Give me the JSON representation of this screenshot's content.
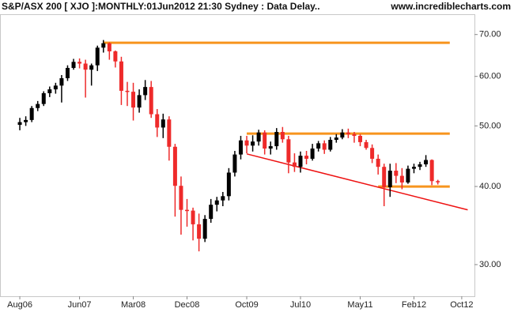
{
  "chart_data": {
    "type": "candlestick",
    "title": "S&P/ASX 200 [ XJO ]:MONTHLY:01Jun2012 21:30 Sydney : Data Delay..",
    "source": "www.incrediblecharts.com",
    "log_scale": true,
    "up_color": "#000000",
    "down_color": "#ee2a2a",
    "x": [
      "2006-08",
      "2006-09",
      "2006-10",
      "2006-11",
      "2006-12",
      "2007-01",
      "2007-02",
      "2007-03",
      "2007-04",
      "2007-05",
      "2007-06",
      "2007-07",
      "2007-08",
      "2007-09",
      "2007-10",
      "2007-11",
      "2007-12",
      "2008-01",
      "2008-02",
      "2008-03",
      "2008-04",
      "2008-05",
      "2008-06",
      "2008-07",
      "2008-08",
      "2008-09",
      "2008-10",
      "2008-11",
      "2008-12",
      "2009-01",
      "2009-02",
      "2009-03",
      "2009-04",
      "2009-05",
      "2009-06",
      "2009-07",
      "2009-08",
      "2009-09",
      "2009-10",
      "2009-11",
      "2009-12",
      "2010-01",
      "2010-02",
      "2010-03",
      "2010-04",
      "2010-05",
      "2010-06",
      "2010-07",
      "2010-08",
      "2010-09",
      "2010-10",
      "2010-11",
      "2010-12",
      "2011-01",
      "2011-02",
      "2011-03",
      "2011-04",
      "2011-05",
      "2011-06",
      "2011-07",
      "2011-08",
      "2011-09",
      "2011-10",
      "2011-11",
      "2011-12",
      "2012-01",
      "2012-02",
      "2012-03",
      "2012-04",
      "2012-05",
      "2012-06"
    ],
    "open": [
      50.2,
      50.7,
      51.1,
      53.4,
      54.2,
      56.4,
      57.2,
      58.0,
      59.6,
      61.9,
      63.3,
      62.9,
      61.5,
      62.5,
      66.7,
      67.8,
      65.8,
      63.4,
      56.9,
      56.7,
      53.5,
      56.0,
      57.7,
      52.2,
      49.7,
      51.2,
      46.3,
      40.1,
      36.7,
      36.6,
      34.8,
      33.0,
      35.5,
      37.4,
      38.0,
      38.6,
      42.1,
      45.0,
      47.4,
      46.5,
      47.2,
      48.8,
      46.0,
      46.4,
      48.9,
      47.6,
      43.7,
      43.0,
      44.8,
      44.3,
      46.0,
      46.9,
      45.8,
      47.5,
      47.9,
      48.8,
      48.5,
      48.2,
      47.1,
      46.1,
      44.3,
      43.0,
      39.9,
      42.4,
      41.6,
      40.6,
      42.7,
      43.0,
      43.4,
      44.1,
      40.8
    ],
    "high": [
      51.5,
      51.8,
      53.8,
      54.8,
      56.8,
      57.8,
      58.6,
      60.3,
      62.5,
      64.0,
      64.1,
      63.8,
      62.9,
      67.2,
      68.6,
      68.0,
      66.0,
      64.5,
      58.8,
      58.6,
      57.2,
      59.2,
      59.0,
      53.2,
      52.3,
      51.8,
      46.8,
      41.5,
      38.2,
      37.0,
      36.2,
      36.0,
      38.2,
      38.5,
      39.2,
      42.8,
      45.6,
      48.2,
      48.2,
      48.3,
      49.3,
      49.2,
      47.2,
      49.6,
      49.8,
      48.2,
      45.2,
      45.5,
      45.6,
      46.8,
      47.3,
      47.4,
      48.0,
      48.5,
      49.4,
      49.5,
      48.9,
      48.5,
      47.5,
      46.7,
      45.0,
      43.5,
      43.5,
      43.6,
      42.8,
      43.2,
      43.5,
      43.8,
      44.9,
      44.2,
      41.0
    ],
    "low": [
      49.2,
      50.0,
      50.7,
      52.8,
      53.8,
      55.6,
      56.3,
      54.5,
      59.0,
      61.5,
      61.8,
      55.5,
      58.0,
      61.2,
      65.5,
      63.8,
      62.0,
      54.0,
      53.8,
      51.0,
      52.5,
      55.0,
      51.5,
      48.0,
      47.8,
      44.0,
      35.8,
      33.5,
      34.5,
      32.8,
      31.5,
      32.6,
      35.0,
      36.5,
      37.2,
      38.0,
      41.5,
      44.2,
      45.2,
      45.5,
      46.5,
      45.0,
      45.0,
      45.8,
      47.0,
      42.0,
      42.2,
      42.1,
      43.4,
      44.0,
      45.5,
      45.1,
      45.5,
      47.0,
      47.6,
      47.8,
      47.0,
      46.4,
      45.8,
      43.6,
      41.8,
      37.2,
      38.5,
      40.5,
      39.6,
      40.4,
      42.0,
      42.5,
      43.0,
      40.2,
      40.3
    ],
    "close": [
      50.7,
      51.1,
      53.4,
      54.2,
      56.4,
      57.2,
      58.0,
      59.6,
      61.9,
      63.3,
      62.9,
      61.5,
      62.5,
      66.7,
      67.8,
      65.8,
      63.4,
      56.9,
      56.7,
      53.5,
      56.0,
      57.7,
      52.2,
      49.7,
      51.2,
      46.3,
      40.1,
      36.7,
      36.6,
      34.8,
      33.0,
      35.5,
      37.4,
      38.0,
      38.6,
      42.1,
      45.0,
      47.4,
      46.5,
      47.2,
      48.8,
      46.0,
      46.4,
      48.9,
      47.6,
      43.7,
      43.0,
      44.8,
      44.3,
      46.0,
      46.9,
      45.8,
      47.5,
      47.9,
      48.8,
      48.5,
      48.2,
      47.1,
      46.1,
      44.3,
      43.0,
      39.9,
      42.4,
      41.6,
      40.6,
      42.7,
      43.0,
      43.4,
      44.1,
      40.8,
      40.7
    ],
    "xlim": [
      "2006-07",
      "2012-12"
    ],
    "xticks": [
      {
        "value": "2006-08",
        "label": "Aug06"
      },
      {
        "value": "2007-06",
        "label": "Jun07"
      },
      {
        "value": "2008-03",
        "label": "Mar08"
      },
      {
        "value": "2008-12",
        "label": "Dec08"
      },
      {
        "value": "2009-10",
        "label": "Oct09"
      },
      {
        "value": "2010-07",
        "label": "Jul10"
      },
      {
        "value": "2011-05",
        "label": "May11"
      },
      {
        "value": "2012-02",
        "label": "Feb12"
      },
      {
        "value": "2012-10",
        "label": "Oct12"
      }
    ],
    "ylim": [
      26.7,
      75
    ],
    "yticks": [
      {
        "value": 30,
        "label": "30.00"
      },
      {
        "value": 40,
        "label": "40.00"
      },
      {
        "value": 50,
        "label": "50.00"
      },
      {
        "value": 60,
        "label": "60.00"
      },
      {
        "value": 70,
        "label": "70.00"
      }
    ],
    "levels": [
      {
        "value": 67.9,
        "from": "2007-10",
        "to": "2012-08",
        "color": "#f7941d"
      },
      {
        "value": 48.6,
        "from": "2009-10",
        "to": "2012-08",
        "color": "#f7941d"
      },
      {
        "value": 40.0,
        "from": "2011-08",
        "to": "2012-08",
        "color": "#f7941d"
      }
    ],
    "trendline": {
      "from": [
        "2009-10",
        45.1
      ],
      "to": [
        "2012-11",
        36.7
      ],
      "color": "#ee1111"
    }
  }
}
